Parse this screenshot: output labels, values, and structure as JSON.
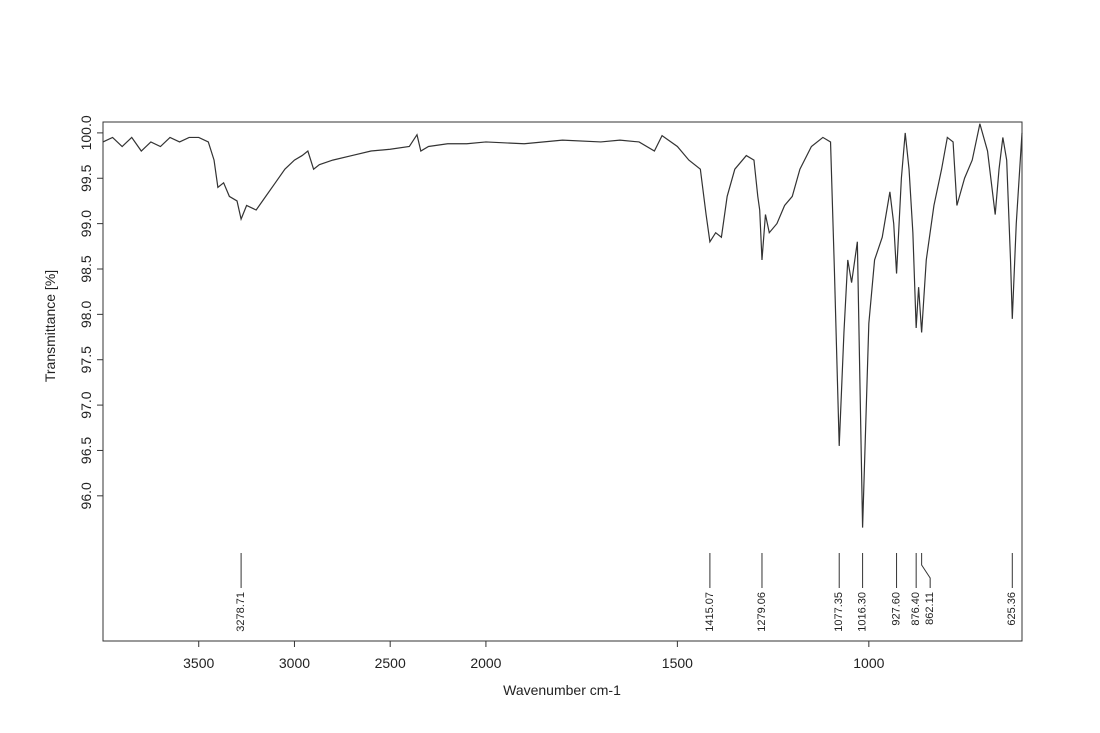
{
  "chart_data": {
    "type": "line",
    "xlabel": "Wavenumber cm-1",
    "ylabel": "Transmittance [%]",
    "xlim": [
      4000,
      600
    ],
    "x_scale_break": 2000,
    "x_scale_compression": 2,
    "ylim": [
      94.4,
      100.12
    ],
    "xticks": [
      3500,
      3000,
      2500,
      2000,
      1500,
      1000
    ],
    "yticks": [
      {
        "value": 96,
        "label": "96.0"
      },
      96.5,
      {
        "value": 97,
        "label": "97.0"
      },
      97.5,
      {
        "value": 98,
        "label": "98.0"
      },
      98.5,
      {
        "value": 99,
        "label": "99.0"
      },
      99.5,
      {
        "value": 100,
        "label": "100.0"
      }
    ],
    "series": [
      {
        "name": "Transmittance",
        "color": "#333333",
        "x": [
          4000,
          3950,
          3900,
          3850,
          3800,
          3750,
          3700,
          3650,
          3600,
          3550,
          3500,
          3450,
          3420,
          3400,
          3370,
          3340,
          3300,
          3278.71,
          3250,
          3200,
          3150,
          3100,
          3050,
          3000,
          2960,
          2930,
          2900,
          2870,
          2800,
          2700,
          2600,
          2500,
          2400,
          2360,
          2340,
          2300,
          2200,
          2100,
          2000,
          1900,
          1800,
          1700,
          1650,
          1600,
          1560,
          1540,
          1500,
          1470,
          1440,
          1425,
          1415.07,
          1400,
          1385,
          1370,
          1350,
          1320,
          1300,
          1290,
          1285,
          1279.06,
          1270,
          1260,
          1240,
          1220,
          1200,
          1180,
          1150,
          1120,
          1100,
          1090,
          1077.35,
          1065,
          1055,
          1045,
          1030,
          1016.3,
          1000,
          985,
          965,
          945,
          935,
          927.6,
          915,
          905,
          895,
          885,
          876.4,
          870,
          862.11,
          850,
          830,
          810,
          795,
          780,
          770,
          750,
          730,
          710,
          690,
          670,
          660,
          650,
          640,
          630,
          625.36,
          615,
          600
        ],
        "values": [
          99.9,
          99.95,
          99.85,
          99.95,
          99.8,
          99.9,
          99.85,
          99.95,
          99.9,
          99.95,
          99.95,
          99.9,
          99.7,
          99.4,
          99.45,
          99.3,
          99.25,
          99.05,
          99.2,
          99.15,
          99.3,
          99.45,
          99.6,
          99.7,
          99.75,
          99.8,
          99.6,
          99.65,
          99.7,
          99.75,
          99.8,
          99.82,
          99.85,
          99.98,
          99.8,
          99.85,
          99.88,
          99.88,
          99.9,
          99.88,
          99.92,
          99.9,
          99.92,
          99.9,
          99.8,
          99.97,
          99.85,
          99.7,
          99.6,
          99.1,
          98.8,
          98.9,
          98.85,
          99.3,
          99.6,
          99.75,
          99.7,
          99.3,
          99.15,
          98.6,
          99.1,
          98.9,
          99.0,
          99.2,
          99.3,
          99.6,
          99.85,
          99.95,
          99.9,
          98.5,
          96.55,
          97.8,
          98.6,
          98.35,
          98.8,
          95.65,
          97.9,
          98.6,
          98.85,
          99.35,
          99.0,
          98.45,
          99.5,
          100.0,
          99.6,
          98.9,
          97.85,
          98.3,
          97.8,
          98.6,
          99.2,
          99.6,
          99.95,
          99.9,
          99.2,
          99.5,
          99.7,
          100.1,
          99.8,
          99.1,
          99.6,
          99.95,
          99.7,
          98.6,
          97.95,
          99.0,
          100.0
        ]
      }
    ],
    "peaks": [
      {
        "value": 3278.71,
        "label": "3278.71"
      },
      {
        "value": 1415.07,
        "label": "1415.07"
      },
      {
        "value": 1279.06,
        "label": "1279.06"
      },
      {
        "value": 1077.35,
        "label": "1077.35"
      },
      {
        "value": 1016.3,
        "label": "1016.30"
      },
      {
        "value": 927.6,
        "label": "927.60"
      },
      {
        "value": 876.4,
        "label": "876.40"
      },
      {
        "value": 862.11,
        "label": "862.11"
      },
      {
        "value": 625.36,
        "label": "625.36"
      }
    ]
  }
}
